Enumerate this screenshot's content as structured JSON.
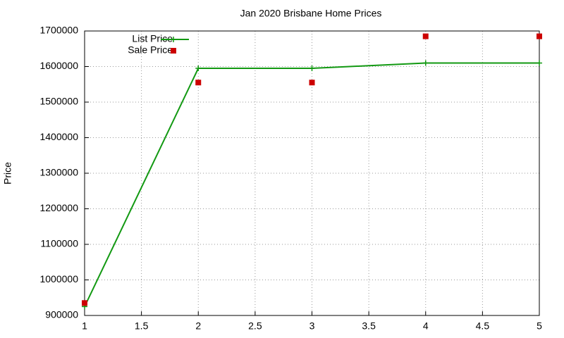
{
  "chart_data": {
    "type": "line",
    "title": "Jan 2020 Brisbane Home Prices",
    "y_label": "Price",
    "x": [
      1,
      2,
      3,
      4,
      5
    ],
    "series": [
      {
        "name": "List Price",
        "color": "#129912",
        "marker": "plus",
        "line": true,
        "values": [
          925000,
          1595000,
          1595000,
          1610000,
          1610000
        ]
      },
      {
        "name": "Sale Price",
        "color": "#cc0000",
        "marker": "square",
        "line": false,
        "values": [
          935000,
          1555000,
          1555000,
          1685000,
          1685000
        ]
      }
    ],
    "xlim": [
      1,
      5
    ],
    "xticks": [
      1,
      1.5,
      2,
      2.5,
      3,
      3.5,
      4,
      4.5,
      5
    ],
    "ylim": [
      900000,
      1700000
    ],
    "yticks": [
      900000,
      1000000,
      1100000,
      1200000,
      1300000,
      1400000,
      1500000,
      1600000,
      1700000
    ],
    "grid": true,
    "legend": "top-left"
  }
}
